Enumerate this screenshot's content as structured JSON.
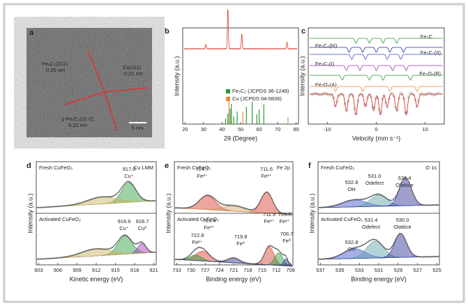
{
  "panels": [
    {
      "label": "a",
      "annotations": [
        "Fe₅C₂(311)",
        "0.25 nm",
        "Cu(111)",
        "0.21 nm",
        "χ-Fe₅C₂(11-2)",
        "0.22 nm"
      ],
      "scale_bar": "5 nm"
    },
    {
      "label": "b",
      "xticks": [
        20,
        30,
        40,
        50,
        60,
        70,
        80
      ],
      "xlabel": "2θ (Degree)",
      "ylabel": "Intensity (a.u.)",
      "legend": [
        "Fe₅C₂ (JCPDS 36-1248)",
        "Cu (JCPDS 04-0836)"
      ]
    },
    {
      "label": "c",
      "xticks": [
        -10,
        0,
        10
      ],
      "xlabel": "Velocity (mm s⁻¹)",
      "ylabel": "Intensity (a.u.)",
      "annotations": [
        "Fe₃C",
        "Fe₅C₂(III)",
        "Fe₅C₂(II)",
        "Fe₅C₂(I)",
        "Fe₃O₄(B)",
        "Fe₃O₄(A)"
      ]
    },
    {
      "label": "d",
      "xticks": [
        903,
        906,
        909,
        912,
        915,
        918,
        921
      ],
      "xlabel": "Kinetic energy (eV)",
      "ylabel": "Intensity (a.u.)",
      "annotations": [
        "Fresh CuFeO₂",
        "Cu LMM",
        "917.0",
        "Cu⁺",
        "Activated CuFeO₂",
        "916.6",
        "Cu⁺",
        "918.7",
        "Cu⁰"
      ]
    },
    {
      "label": "e",
      "xticks": [
        733,
        730,
        727,
        724,
        721,
        718,
        715,
        712,
        709
      ],
      "xlabel": "Binding energy (eV)",
      "ylabel": "Intensity (a.u.)",
      "annotations": [
        "Fresh CuFeO₂",
        "Fe 2p",
        "724.7",
        "Fe³⁺",
        "711.6",
        "Fe³⁺",
        "Activated CuFeO₂",
        "724.4",
        "Fe³⁺",
        "719.8",
        "Fe⁰",
        "722.8",
        "Fe²⁺",
        "711.3",
        "Fe³⁺",
        "709.7",
        "Fe²⁺",
        "706.7",
        "Fe⁰"
      ]
    },
    {
      "label": "f",
      "xticks": [
        537,
        535,
        533,
        531,
        529,
        527,
        525
      ],
      "xlabel": "Binding energy (eV)",
      "ylabel": "Intensity (a.u.)",
      "annotations": [
        "Fresh CuFeO₂",
        "O 1s",
        "532.8",
        "OH",
        "531.0",
        "Odefect",
        "529.4",
        "Olattice",
        "Activated CuFeO₂",
        "532.8",
        "OH",
        "531.4",
        "Odefect",
        "530.0",
        "Olattice"
      ]
    }
  ]
}
